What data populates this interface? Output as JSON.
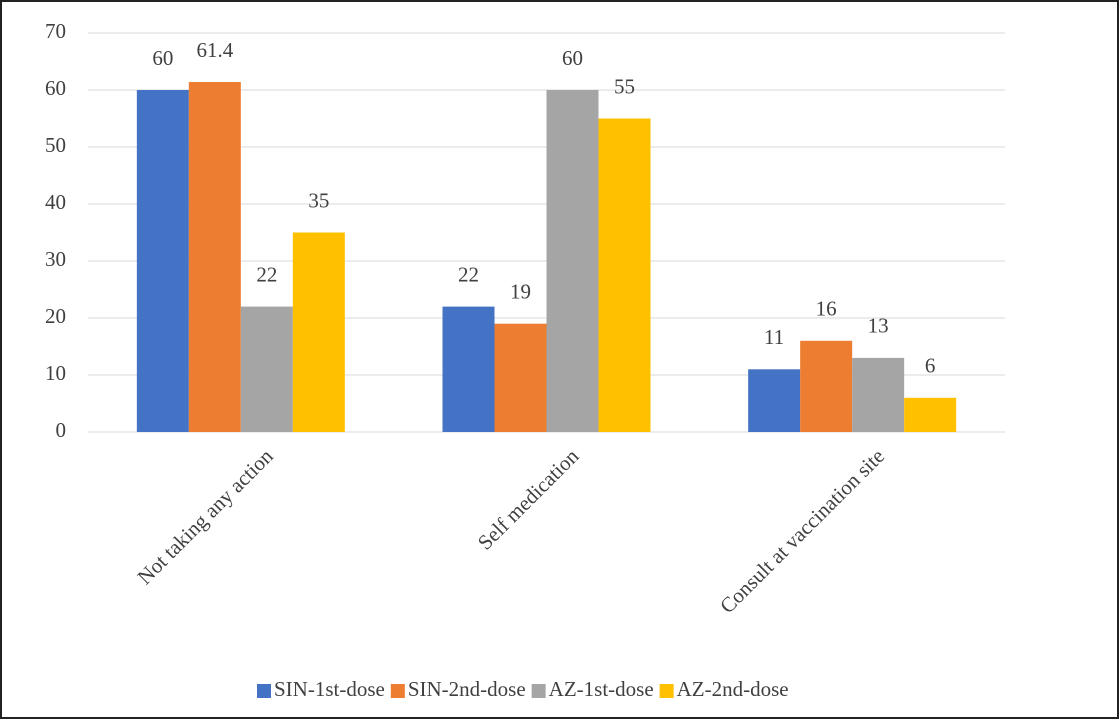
{
  "chart_data": {
    "type": "bar",
    "categories": [
      "Not taking any action",
      "Self medication",
      "Consult at vaccination site"
    ],
    "series": [
      {
        "name": "SIN-1st-dose",
        "color": "#4472c4",
        "values": [
          60,
          22,
          11
        ]
      },
      {
        "name": "SIN-2nd-dose",
        "color": "#ed7d31",
        "values": [
          61.4,
          19,
          16
        ]
      },
      {
        "name": "AZ-1st-dose",
        "color": "#a5a5a5",
        "values": [
          22,
          60,
          13
        ]
      },
      {
        "name": "AZ-2nd-dose",
        "color": "#ffc000",
        "values": [
          35,
          55,
          6
        ]
      }
    ],
    "ylim": [
      0,
      70
    ],
    "yticks": [
      0,
      10,
      20,
      30,
      40,
      50,
      60,
      70
    ],
    "grid": true,
    "legend": "bottom"
  }
}
